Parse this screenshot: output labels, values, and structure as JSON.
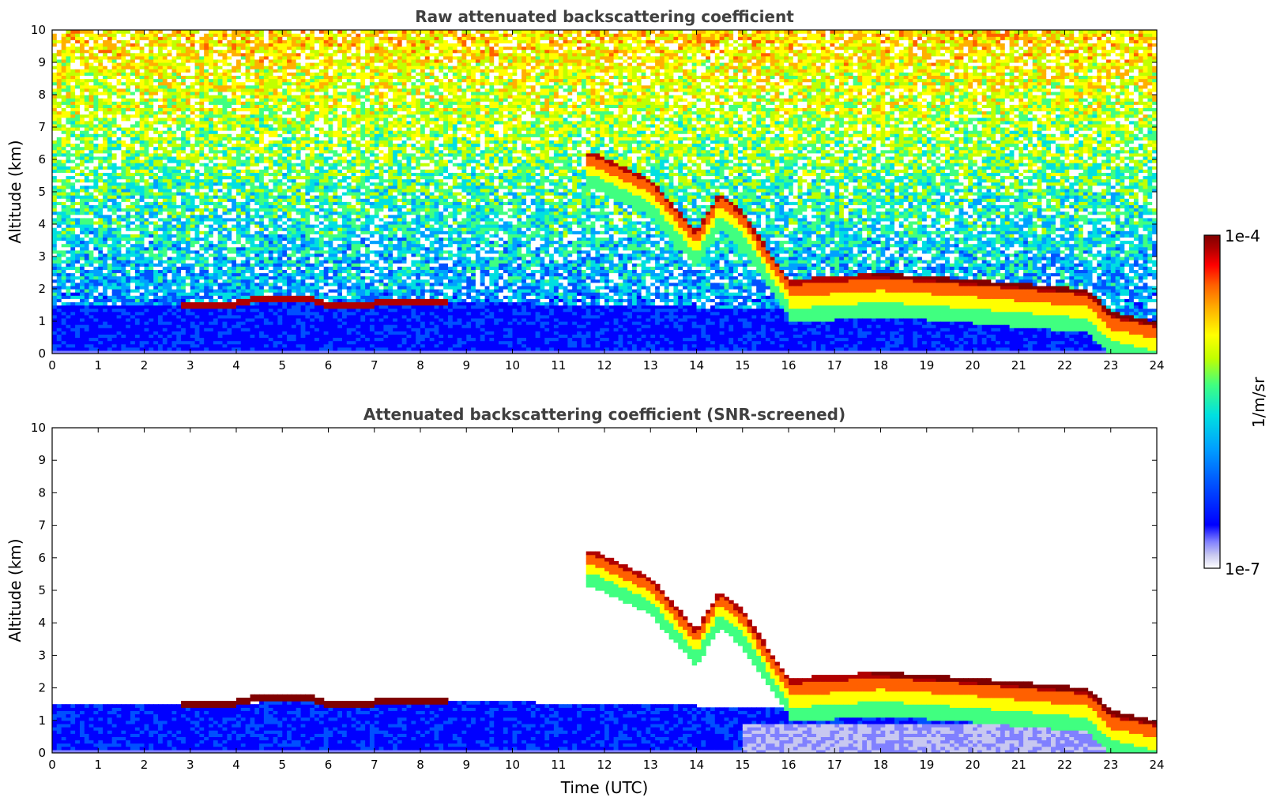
{
  "chart_data": [
    {
      "type": "heatmap",
      "title": "Raw attenuated backscattering coefficient",
      "xlabel": "",
      "ylabel": "Altitude (km)",
      "xlim": [
        0,
        24
      ],
      "ylim": [
        0,
        10
      ],
      "xticks": [
        0,
        1,
        2,
        3,
        4,
        5,
        6,
        7,
        8,
        9,
        10,
        11,
        12,
        13,
        14,
        15,
        16,
        17,
        18,
        19,
        20,
        21,
        22,
        23,
        24
      ],
      "yticks": [
        0,
        1,
        2,
        3,
        4,
        5,
        6,
        7,
        8,
        9,
        10
      ],
      "layers": [
        {
          "name": "boundary layer",
          "points": [
            [
              0,
              1.5
            ],
            [
              3,
              1.5
            ],
            [
              6,
              1.6
            ],
            [
              9,
              1.6
            ],
            [
              12,
              1.5
            ],
            [
              16,
              1.4
            ],
            [
              20,
              1.4
            ],
            [
              22.5,
              1.3
            ],
            [
              23,
              1.0
            ],
            [
              24,
              0.9
            ]
          ]
        },
        {
          "name": "low cloud",
          "points": [
            [
              2.8,
              1.5
            ],
            [
              4,
              1.55
            ],
            [
              4.5,
              1.7
            ],
            [
              5.5,
              1.75
            ],
            [
              6,
              1.5
            ],
            [
              7,
              1.55
            ],
            [
              8,
              1.6
            ],
            [
              8.5,
              1.6
            ]
          ]
        },
        {
          "name": "descending cloud",
          "points": [
            [
              11.8,
              6.2
            ],
            [
              13,
              5.4
            ],
            [
              14,
              3.8
            ],
            [
              14.5,
              5.0
            ],
            [
              15,
              4.4
            ],
            [
              16,
              2.3
            ],
            [
              17,
              2.4
            ],
            [
              18,
              2.5
            ],
            [
              20,
              2.3
            ],
            [
              22.5,
              2.0
            ],
            [
              23,
              1.3
            ],
            [
              24,
              1.0
            ]
          ]
        }
      ]
    },
    {
      "type": "heatmap",
      "title": "Attenuated backscattering coefficient (SNR-screened)",
      "xlabel": "Time (UTC)",
      "ylabel": "Altitude (km)",
      "xlim": [
        0,
        24
      ],
      "ylim": [
        0,
        10
      ],
      "xticks": [
        0,
        1,
        2,
        3,
        4,
        5,
        6,
        7,
        8,
        9,
        10,
        11,
        12,
        13,
        14,
        15,
        16,
        17,
        18,
        19,
        20,
        21,
        22,
        23,
        24
      ],
      "yticks": [
        0,
        1,
        2,
        3,
        4,
        5,
        6,
        7,
        8,
        9,
        10
      ]
    }
  ],
  "colorbar": {
    "label": "1/m/sr",
    "max_label": "1e-4",
    "min_label": "1e-7",
    "range": [
      1e-07,
      0.0001
    ],
    "scale": "log",
    "colormap": [
      "#ffffff",
      "#c8c8f0",
      "#8080ff",
      "#0000ff",
      "#0050ff",
      "#00a0ff",
      "#00e0e0",
      "#40ff80",
      "#c0ff00",
      "#ffff00",
      "#ffb000",
      "#ff6000",
      "#ff0000",
      "#b00000",
      "#800000"
    ]
  }
}
